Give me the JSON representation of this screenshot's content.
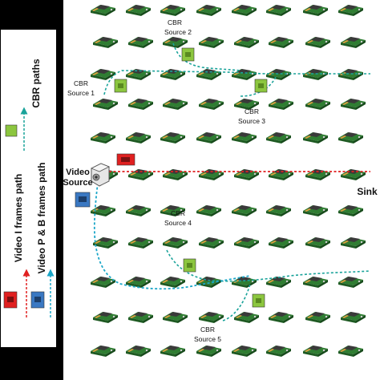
{
  "legend": {
    "cbr_paths": "CBR paths",
    "video_i_path": "Video I frames path",
    "video_pb_path": "Video P & B frames path"
  },
  "labels": {
    "cbr1": [
      "CBR",
      "Source 1"
    ],
    "cbr2": [
      "CBR",
      "Source 2"
    ],
    "cbr3": [
      "CBR",
      "Source 3"
    ],
    "cbr4": [
      "CBR",
      "Source 4"
    ],
    "cbr5": [
      "CBR",
      "Source 5"
    ],
    "video": [
      "Video",
      "Source"
    ],
    "sink": "Sink"
  },
  "colors": {
    "cbr_path": "#1aa39a",
    "i_frames_path": "#e02020",
    "pb_frames_path": "#1aa6c8",
    "cbr_packet": "#8cc63f",
    "i_packet": "#e02020",
    "pb_packet": "#3a78c2",
    "node_board": "#2f7d32",
    "node_chip": "#3a3a3a",
    "legend_bar": "#000000"
  }
}
